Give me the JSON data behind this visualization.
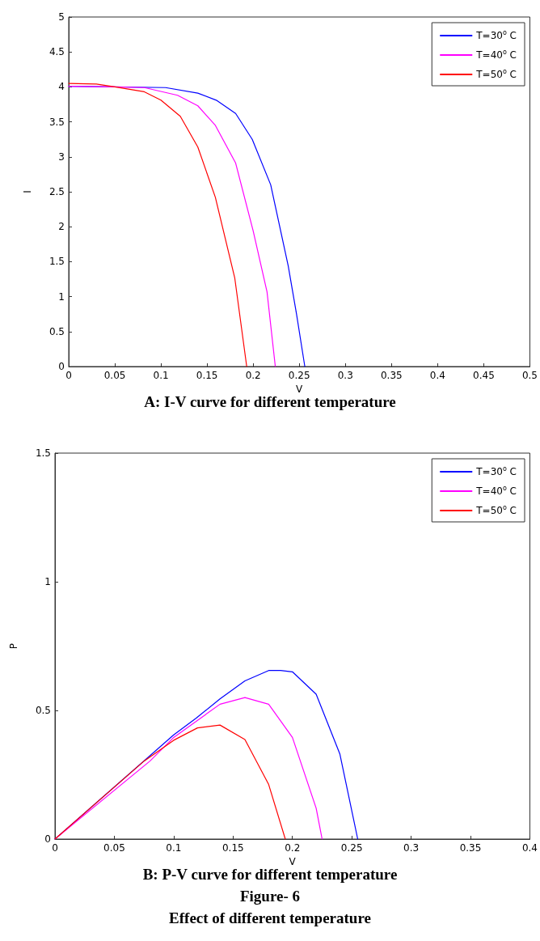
{
  "chart_data": [
    {
      "type": "line",
      "title": "A: I-V curve for different temperature",
      "xlabel": "V",
      "ylabel": "I",
      "xlim": [
        0,
        0.5
      ],
      "xticks": [
        0,
        0.05,
        0.1,
        0.15,
        0.2,
        0.25,
        0.3,
        0.35,
        0.4,
        0.45,
        0.5
      ],
      "ylim": [
        0,
        5
      ],
      "yticks": [
        0,
        0.5,
        1,
        1.5,
        2,
        2.5,
        3,
        3.5,
        4,
        4.5,
        5
      ],
      "grid": false,
      "legend": "top right",
      "marker": "none",
      "line_style": "solid",
      "series": [
        {
          "name": "T=30$^{o}$ C",
          "color": "#0000ff",
          "x": [
            0,
            0.105,
            0.14,
            0.16,
            0.181,
            0.199,
            0.219,
            0.238,
            0.247,
            0.256
          ],
          "values": [
            4.01,
            3.99,
            3.91,
            3.81,
            3.62,
            3.25,
            2.6,
            1.44,
            0.75,
            0
          ]
        },
        {
          "name": "T=40$^{o}$ C",
          "color": "#ff00ff",
          "x": [
            0,
            0.05,
            0.082,
            0.118,
            0.14,
            0.159,
            0.181,
            0.2,
            0.215,
            0.224
          ],
          "values": [
            4.01,
            4.0,
            3.99,
            3.88,
            3.73,
            3.45,
            2.91,
            1.94,
            1.07,
            0
          ]
        },
        {
          "name": "T=50$^{o}$ C",
          "color": "#ff0000",
          "x": [
            0,
            0.03,
            0.05,
            0.082,
            0.1,
            0.121,
            0.14,
            0.159,
            0.18,
            0.193
          ],
          "values": [
            4.05,
            4.04,
            4.0,
            3.93,
            3.81,
            3.58,
            3.14,
            2.42,
            1.27,
            0
          ]
        }
      ]
    },
    {
      "type": "line",
      "title": "B: P-V curve for different temperature",
      "annotations": [
        "Figure- 6",
        "Effect of different temperature"
      ],
      "xlabel": "V",
      "ylabel": "P",
      "xlim": [
        0,
        0.4
      ],
      "xticks": [
        0,
        0.05,
        0.1,
        0.15,
        0.2,
        0.25,
        0.3,
        0.35,
        0.4
      ],
      "ylim": [
        0,
        1.5
      ],
      "yticks": [
        0,
        0.5,
        1,
        1.5
      ],
      "grid": false,
      "legend": "top right",
      "marker": "none",
      "line_style": "solid",
      "series": [
        {
          "name": "T=30$^{o}$ C",
          "color": "#0000ff",
          "x": [
            0,
            0.1,
            0.119,
            0.139,
            0.16,
            0.18,
            0.19,
            0.2,
            0.22,
            0.24,
            0.255
          ],
          "values": [
            0,
            0.405,
            0.47,
            0.545,
            0.615,
            0.655,
            0.655,
            0.65,
            0.563,
            0.33,
            0
          ]
        },
        {
          "name": "T=40$^{o}$ C",
          "color": "#ff00ff",
          "x": [
            0,
            0.08,
            0.1,
            0.139,
            0.16,
            0.18,
            0.2,
            0.22,
            0.225
          ],
          "values": [
            0,
            0.303,
            0.395,
            0.524,
            0.55,
            0.524,
            0.395,
            0.12,
            0
          ]
        },
        {
          "name": "T=50$^{o}$ C",
          "color": "#ff0000",
          "x": [
            0,
            0.075,
            0.1,
            0.12,
            0.139,
            0.16,
            0.18,
            0.194
          ],
          "values": [
            0,
            0.303,
            0.384,
            0.432,
            0.443,
            0.387,
            0.212,
            0
          ]
        }
      ]
    }
  ]
}
